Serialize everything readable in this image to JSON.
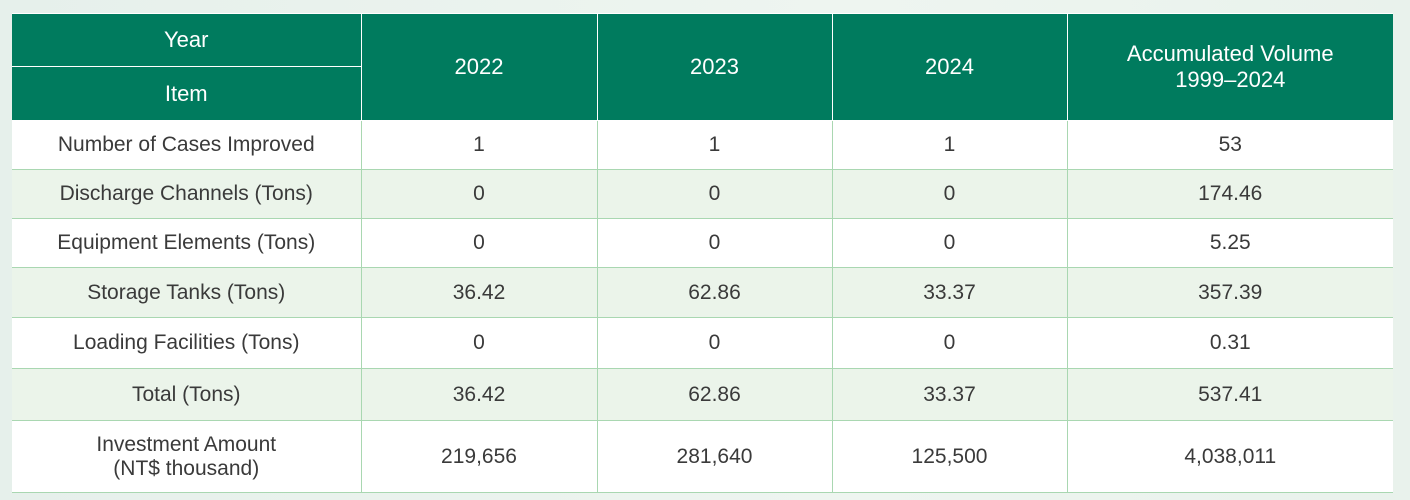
{
  "header": {
    "year_label": "Year",
    "item_label": "Item",
    "columns": [
      "2022",
      "2023",
      "2024"
    ],
    "accumulated_line1": "Accumulated Volume",
    "accumulated_line2": "1999–2024"
  },
  "rows": [
    {
      "item": "Number of Cases Improved",
      "values": [
        "1",
        "1",
        "1",
        "53"
      ]
    },
    {
      "item": "Discharge Channels (Tons)",
      "values": [
        "0",
        "0",
        "0",
        "174.46"
      ]
    },
    {
      "item": "Equipment Elements (Tons)",
      "values": [
        "0",
        "0",
        "0",
        "5.25"
      ]
    },
    {
      "item": "Storage Tanks (Tons)",
      "values": [
        "36.42",
        "62.86",
        "33.37",
        "357.39"
      ]
    },
    {
      "item": "Loading Facilities (Tons)",
      "values": [
        "0",
        "0",
        "0",
        "0.31"
      ]
    },
    {
      "item": "Total (Tons)",
      "values": [
        "36.42",
        "62.86",
        "33.37",
        "537.41"
      ]
    },
    {
      "item": "Investment Amount",
      "item_line2": "(NT$ thousand)",
      "values": [
        "219,656",
        "281,640",
        "125,500",
        "4,038,011"
      ]
    }
  ],
  "colors": {
    "header": "#007b5e",
    "stripe": "#ebf4ea",
    "border": "#a9d7b1"
  }
}
